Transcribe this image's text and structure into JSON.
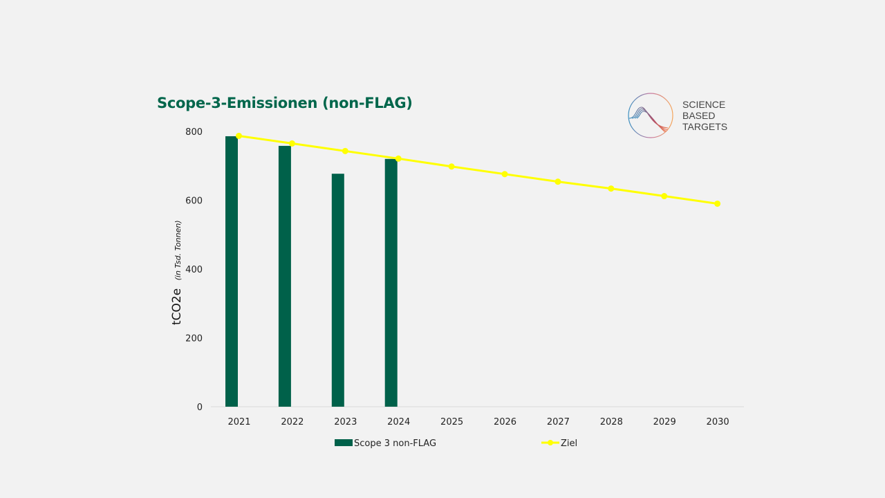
{
  "chart_data": {
    "type": "bar",
    "title": "Scope-3-Emissionen (non-FLAG)",
    "xlabel": "",
    "ylabel": "tCO2e",
    "ylabel_note": "(in Tsd. Tonnen)",
    "ylim": [
      0,
      800
    ],
    "yticks": [
      0,
      200,
      400,
      600,
      800
    ],
    "grid": false,
    "legend_position": "bottom",
    "categories": [
      "2021",
      "2022",
      "2023",
      "2024",
      "2025",
      "2026",
      "2027",
      "2028",
      "2029",
      "2030"
    ],
    "series": [
      {
        "name": "Scope 3 non-FLAG",
        "type": "bar",
        "color": "#00614a",
        "values": [
          786,
          758,
          677,
          720,
          null,
          null,
          null,
          null,
          null,
          null
        ]
      },
      {
        "name": "Ziel",
        "type": "line",
        "color": "#ffff00",
        "values": [
          787,
          765,
          743,
          721,
          698,
          676,
          654,
          634,
          612,
          590
        ]
      }
    ]
  },
  "logo": {
    "lines": [
      "SCIENCE",
      "BASED",
      "TARGETS"
    ]
  }
}
